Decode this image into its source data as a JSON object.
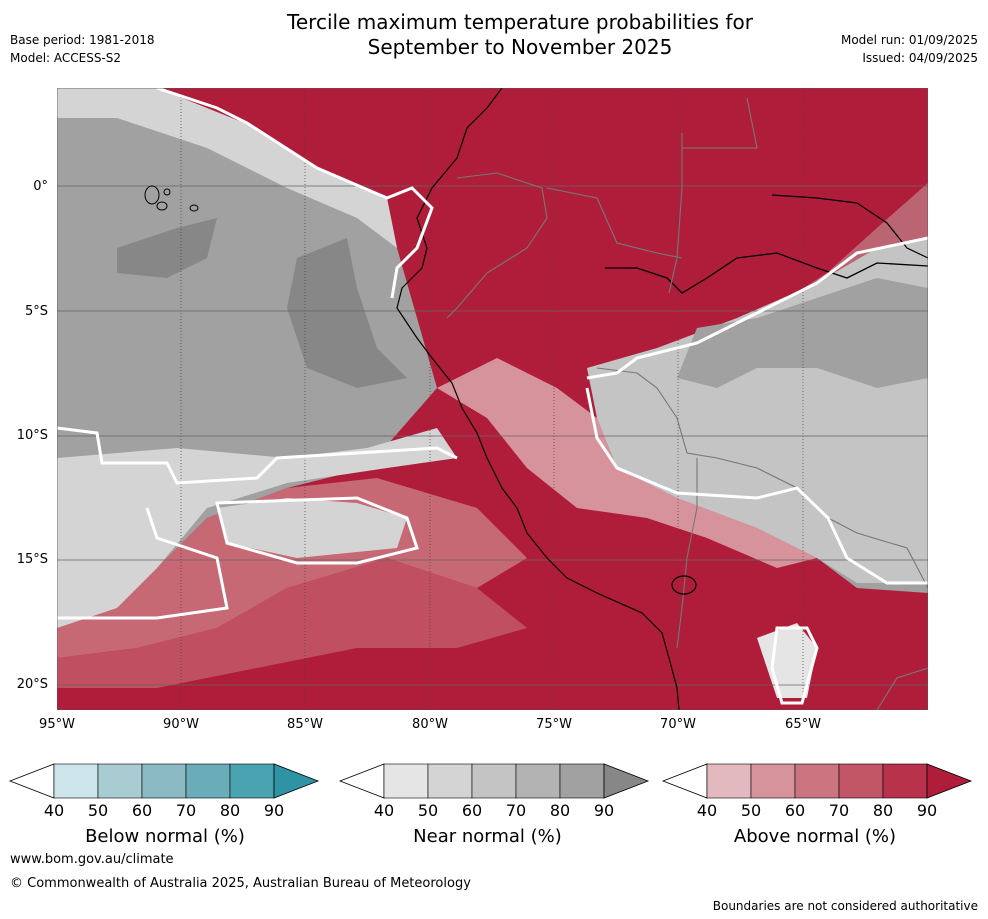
{
  "header": {
    "title_line1": "Tercile maximum temperature probabilities for",
    "title_line2": "September to November 2025",
    "base_period": "Base period: 1981-2018",
    "model": "Model: ACCESS-S2",
    "model_run": "Model run: 01/09/2025",
    "issued": "Issued: 04/09/2025"
  },
  "map": {
    "lat_labels": [
      "0°",
      "5°S",
      "10°S",
      "15°S",
      "20°S"
    ],
    "lon_labels": [
      "95°W",
      "90°W",
      "85°W",
      "80°W",
      "75°W",
      "70°W",
      "65°W"
    ]
  },
  "colorbars": [
    {
      "name": "Below normal (%)",
      "ticks": [
        "40",
        "50",
        "60",
        "70",
        "80",
        "90"
      ],
      "colors": [
        "#ffffff",
        "#cce5ea",
        "#a9cbd2",
        "#8bb9c4",
        "#6aacb8",
        "#4aa3b1",
        "#2f93a6"
      ]
    },
    {
      "name": "Near normal (%)",
      "ticks": [
        "40",
        "50",
        "60",
        "70",
        "80",
        "90"
      ],
      "colors": [
        "#ffffff",
        "#e5e5e5",
        "#d4d4d4",
        "#c4c4c4",
        "#b3b3b3",
        "#a1a1a1",
        "#878787"
      ]
    },
    {
      "name": "Above normal (%)",
      "ticks": [
        "40",
        "50",
        "60",
        "70",
        "80",
        "90"
      ],
      "colors": [
        "#ffffff",
        "#e2b9bf",
        "#d6939c",
        "#cb7580",
        "#c25566",
        "#b7324a",
        "#b01d3b"
      ]
    }
  ],
  "footer": {
    "website": "www.bom.gov.au/climate",
    "copyright": "© Commonwealth of Australia 2025, Australian Bureau of Meteorology",
    "disclaimer": "Boundaries are not considered authoritative"
  }
}
